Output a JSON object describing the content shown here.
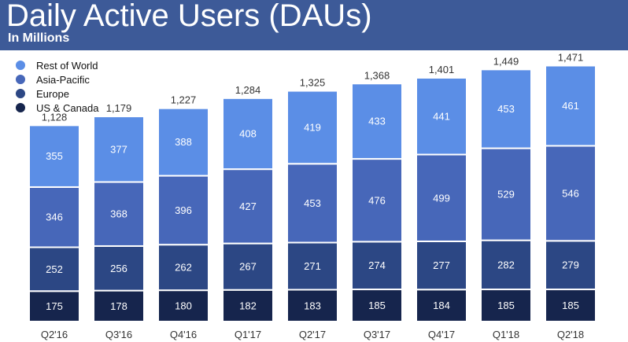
{
  "header": {
    "title": "Daily Active Users (DAUs)",
    "subtitle": "In Millions"
  },
  "colors": {
    "header_bg": "#3d5a98",
    "rest_of_world": "#5b8ee6",
    "asia_pacific": "#4767b9",
    "europe": "#2c4784",
    "us_canada": "#16254d"
  },
  "chart_data": {
    "type": "bar",
    "stacked": true,
    "categories": [
      "Q2'16",
      "Q3'16",
      "Q4'16",
      "Q1'17",
      "Q2'17",
      "Q3'17",
      "Q4'17",
      "Q1'18",
      "Q2'18"
    ],
    "series": [
      {
        "name": "US & Canada",
        "color": "#16254d",
        "values": [
          175,
          178,
          180,
          182,
          183,
          185,
          184,
          185,
          185
        ]
      },
      {
        "name": "Europe",
        "color": "#2c4784",
        "values": [
          252,
          256,
          262,
          267,
          271,
          274,
          277,
          282,
          279
        ]
      },
      {
        "name": "Asia-Pacific",
        "color": "#4767b9",
        "values": [
          346,
          368,
          396,
          427,
          453,
          476,
          499,
          529,
          546
        ]
      },
      {
        "name": "Rest of World",
        "color": "#5b8ee6",
        "values": [
          355,
          377,
          388,
          408,
          419,
          433,
          441,
          453,
          461
        ]
      }
    ],
    "totals": [
      "1,128",
      "1,179",
      "1,227",
      "1,284",
      "1,325",
      "1,368",
      "1,401",
      "1,449",
      "1,471"
    ],
    "legend": {
      "position": "top-left",
      "order": [
        "Rest of World",
        "Asia-Pacific",
        "Europe",
        "US & Canada"
      ]
    },
    "grid": false,
    "xlabel": "",
    "ylabel": ""
  }
}
